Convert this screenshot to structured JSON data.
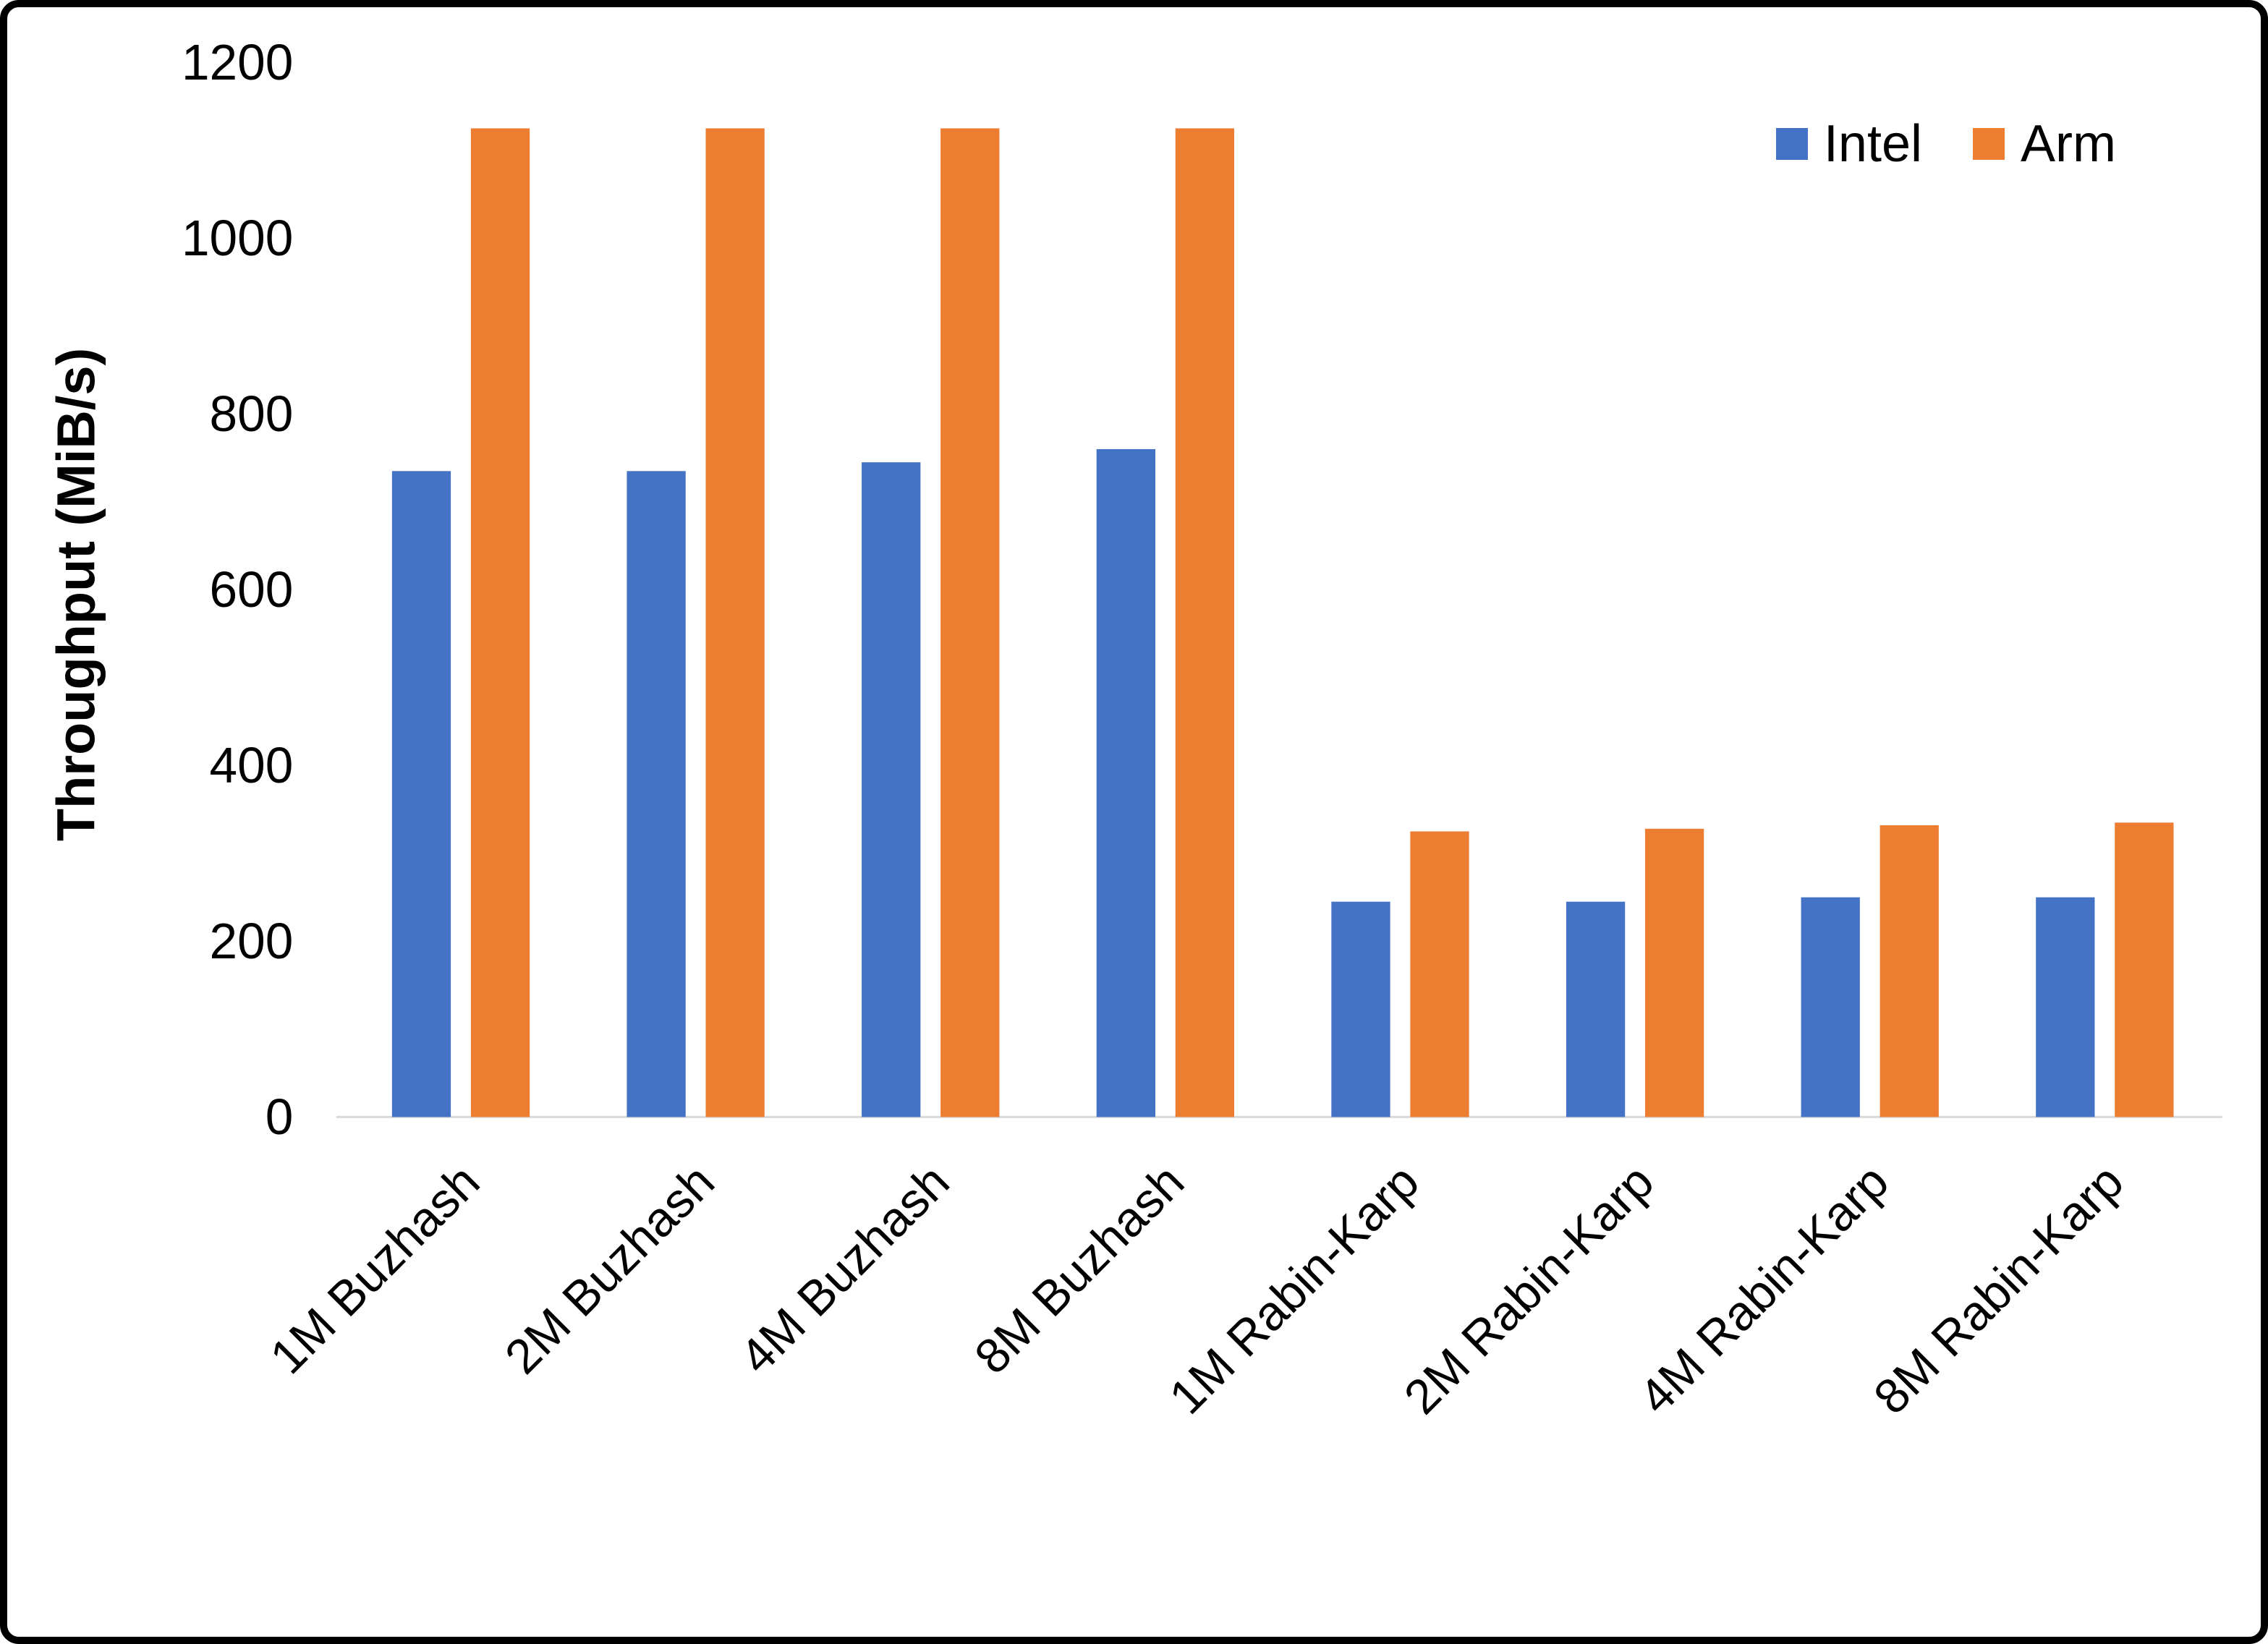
{
  "chart_data": {
    "type": "bar",
    "categories": [
      "1M Buzhash",
      "2M Buzhash",
      "4M Buzhash",
      "8M Buzhash",
      "1M Rabin-Karp",
      "2M Rabin-Karp",
      "4M Rabin-Karp",
      "8M Rabin-Karp"
    ],
    "series": [
      {
        "name": "Intel",
        "color": "#4472C4",
        "values": [
          735,
          735,
          745,
          760,
          245,
          245,
          250,
          250
        ]
      },
      {
        "name": "Arm",
        "color": "#ED7D31",
        "values": [
          1125,
          1125,
          1125,
          1125,
          325,
          328,
          332,
          335
        ]
      }
    ],
    "title": "",
    "xlabel": "",
    "ylabel": "Throughput (MiB/s)",
    "yticks": [
      0,
      200,
      400,
      600,
      800,
      1000,
      1200
    ],
    "ylim": [
      0,
      1200
    ],
    "grid": false,
    "legend_position": "top-right",
    "axis_line_color": "#d9d9d9",
    "text_color": "#000000"
  }
}
